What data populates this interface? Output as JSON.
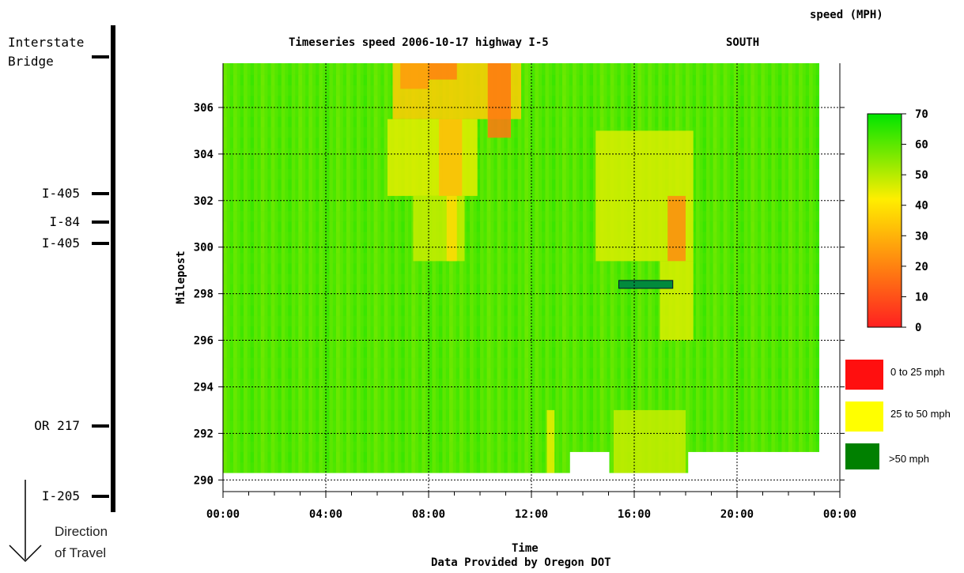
{
  "chart_data": {
    "type": "heatmap",
    "title": "Timeseries speed 2006-10-17 highway I-5",
    "direction": "SOUTH",
    "xlabel": "Time",
    "ylabel": "Milepost",
    "credit": "Data Provided by Oregon DOT",
    "x_ticks": [
      "00:00",
      "04:00",
      "08:00",
      "12:00",
      "16:00",
      "20:00",
      "00:00"
    ],
    "y_ticks": [
      290,
      292,
      294,
      296,
      298,
      300,
      302,
      304,
      306
    ],
    "xlim_hours": [
      0,
      24
    ],
    "ylim_milepost": [
      289.5,
      307.9
    ],
    "grid": true,
    "colorbar": {
      "title": "speed (MPH)",
      "range": [
        0,
        70
      ],
      "ticks": [
        0,
        10,
        20,
        30,
        40,
        50,
        60,
        70
      ],
      "colors": [
        "#ff2020",
        "#ffee00",
        "#00e400"
      ]
    },
    "categories_legend": [
      {
        "label": "0 to 25 mph",
        "color": "#ff0f0f"
      },
      {
        "label": "25 to 50 mph",
        "color": "#ffff00"
      },
      {
        "label": ">50 mph",
        "color": "#008000"
      }
    ],
    "highway_markers": [
      {
        "label": "Interstate\nBridge",
        "milepost": 308.2
      },
      {
        "label": "I-405",
        "milepost": 302.3
      },
      {
        "label": "I-84",
        "milepost": 301.4
      },
      {
        "label": "I-405",
        "milepost": 300.2
      },
      {
        "label": "OR 217",
        "milepost": 292.3
      },
      {
        "label": "I-205",
        "milepost": 289.4
      }
    ],
    "direction_of_travel": "Direction\nof Travel",
    "slow_zones": [
      {
        "t0": 6.6,
        "t1": 11.6,
        "m0": 305.5,
        "m1": 307.9,
        "speed": 35
      },
      {
        "t0": 6.9,
        "t1": 8.0,
        "m0": 306.8,
        "m1": 307.9,
        "speed": 25
      },
      {
        "t0": 8.0,
        "t1": 9.1,
        "m0": 307.2,
        "m1": 307.9,
        "speed": 20
      },
      {
        "t0": 10.3,
        "t1": 11.2,
        "m0": 304.7,
        "m1": 307.9,
        "speed": 18
      },
      {
        "t0": 6.4,
        "t1": 9.9,
        "m0": 302.2,
        "m1": 305.5,
        "speed": 45
      },
      {
        "t0": 8.4,
        "t1": 9.3,
        "m0": 302.2,
        "m1": 305.5,
        "speed": 32
      },
      {
        "t0": 7.4,
        "t1": 9.4,
        "m0": 299.4,
        "m1": 302.2,
        "speed": 48
      },
      {
        "t0": 8.7,
        "t1": 9.1,
        "m0": 299.4,
        "m1": 302.2,
        "speed": 38
      },
      {
        "t0": 14.5,
        "t1": 18.3,
        "m0": 299.4,
        "m1": 305.0,
        "speed": 46
      },
      {
        "t0": 17.3,
        "t1": 18.0,
        "m0": 299.4,
        "m1": 302.2,
        "speed": 22
      },
      {
        "t0": 17.0,
        "t1": 18.3,
        "m0": 296.0,
        "m1": 299.4,
        "speed": 46
      },
      {
        "t0": 15.2,
        "t1": 18.0,
        "m0": 290.3,
        "m1": 293.0,
        "speed": 48
      },
      {
        "t0": 12.6,
        "t1": 12.9,
        "m0": 290.3,
        "m1": 293.0,
        "speed": 44
      }
    ],
    "no_data_regions": [
      {
        "t0": 13.5,
        "t1": 15.0,
        "m0": 289.5,
        "m1": 291.2
      },
      {
        "t0": 18.1,
        "t1": 24.0,
        "m0": 289.5,
        "m1": 291.2
      },
      {
        "t0": 23.2,
        "t1": 24.0,
        "m0": 289.5,
        "m1": 307.9
      }
    ],
    "marker_bar": {
      "t0": 15.4,
      "t1": 17.5,
      "milepost": 298.4,
      "color": "#028a3c"
    }
  }
}
